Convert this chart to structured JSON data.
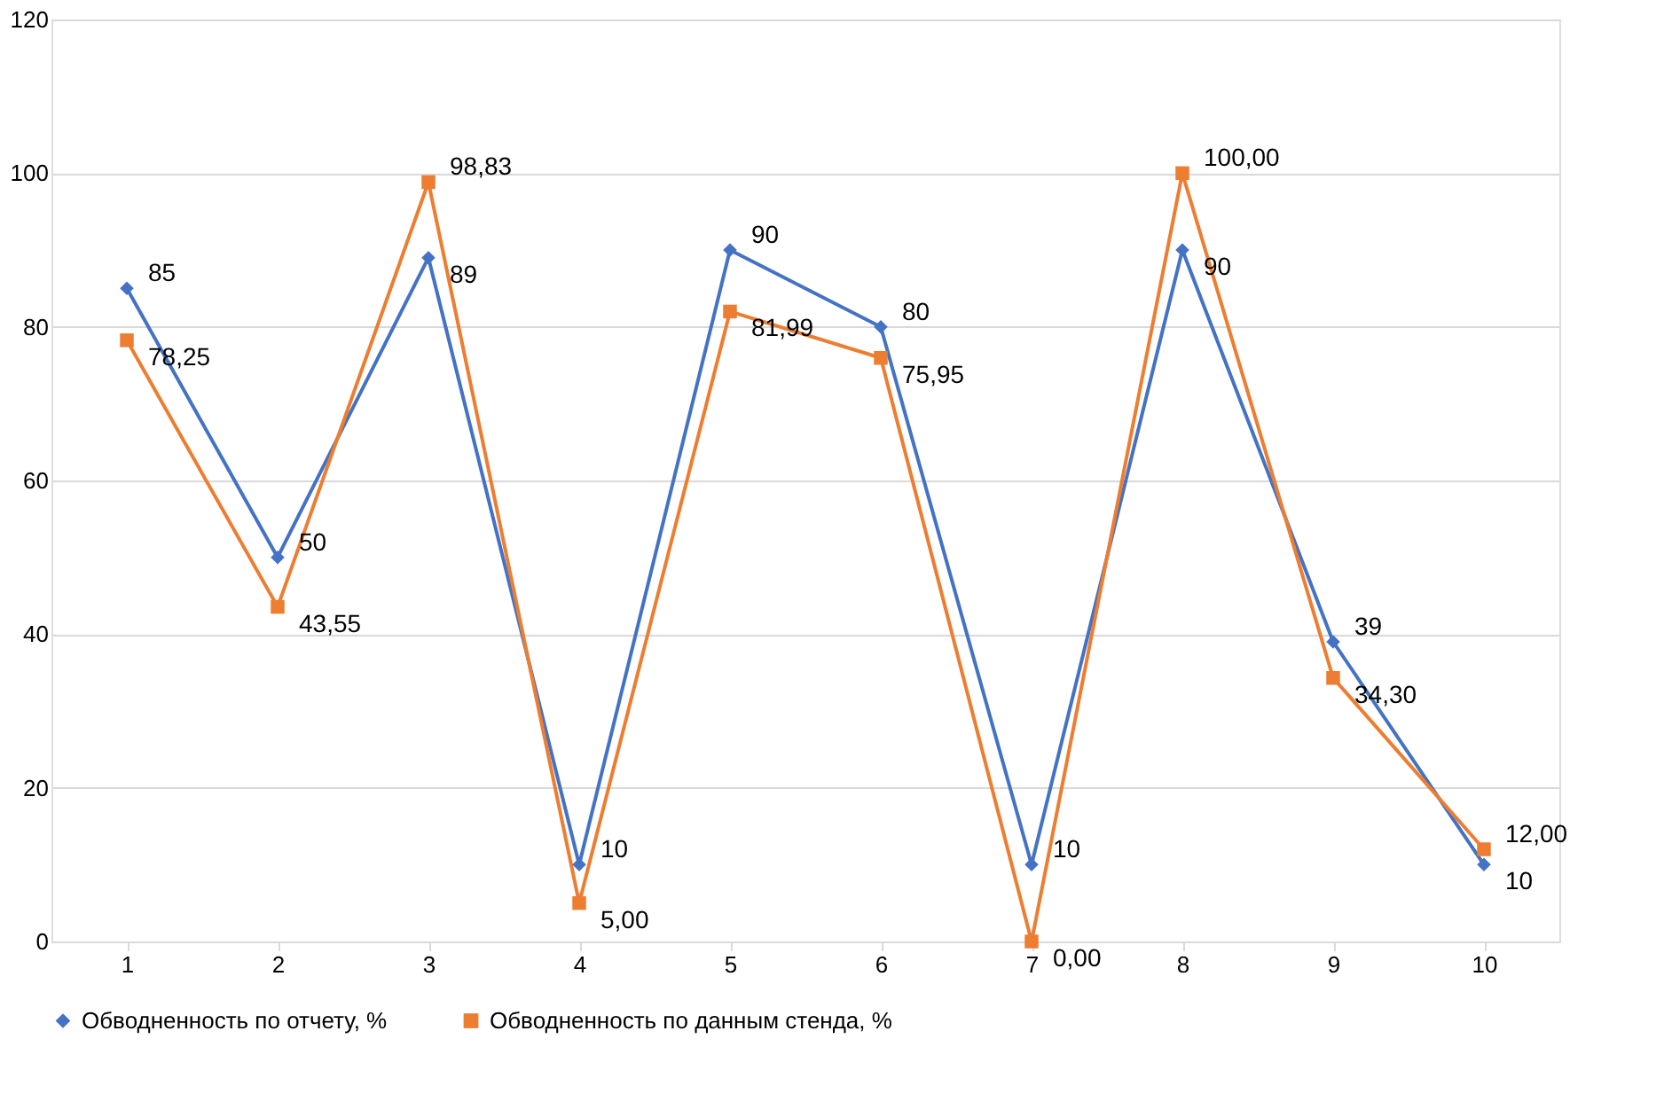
{
  "chart_data": {
    "type": "line",
    "categories": [
      "1",
      "2",
      "3",
      "4",
      "5",
      "6",
      "7",
      "8",
      "9",
      "10"
    ],
    "series": [
      {
        "name": "Обводненность по отчету, %",
        "color": "#4472c4",
        "marker": "diamond",
        "values": [
          85,
          50,
          89,
          10,
          90,
          80,
          10,
          90,
          39,
          10
        ],
        "value_labels": [
          "85",
          "50",
          "89",
          "10",
          "90",
          "80",
          "10",
          "90",
          "39",
          "10"
        ]
      },
      {
        "name": "Обводненность по данным стенда, %",
        "color": "#ed7d31",
        "marker": "square",
        "values": [
          78.25,
          43.55,
          98.83,
          5.0,
          81.99,
          75.95,
          0.0,
          100.0,
          34.3,
          12.0
        ],
        "value_labels": [
          "78,25",
          "43,55",
          "98,83",
          "5,00",
          "81,99",
          "75,95",
          "0,00",
          "100,00",
          "34,30",
          "12,00"
        ]
      }
    ],
    "ylim": [
      0,
      120
    ],
    "yticks": [
      0,
      20,
      40,
      60,
      80,
      100,
      120
    ],
    "grid": "y",
    "legend": "bottom",
    "line_style": "solid"
  }
}
